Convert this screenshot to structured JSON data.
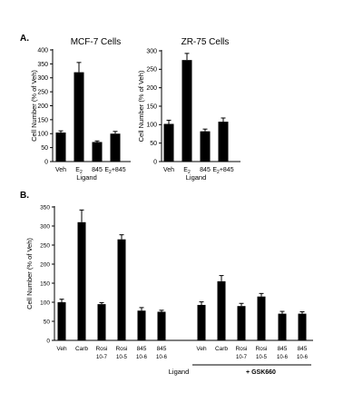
{
  "panel_labels": {
    "a": "A.",
    "b": "B."
  },
  "chart_data": [
    {
      "type": "bar",
      "panel": "A.",
      "title": "MCF-7 Cells",
      "xlabel": "Ligand",
      "ylabel": "Cell Number (% of Veh)",
      "ylim": [
        0,
        400
      ],
      "yticks": [
        0,
        50,
        100,
        150,
        200,
        250,
        300,
        350,
        400
      ],
      "categories": [
        {
          "main": "Veh",
          "sub": ""
        },
        {
          "main": "E",
          "sub": "2"
        },
        {
          "main": "845",
          "sub": ""
        },
        {
          "main": "E",
          "sub": "2",
          "rest": "+845"
        }
      ],
      "values": [
        104,
        320,
        70,
        100
      ],
      "errors": [
        6,
        35,
        4,
        8
      ]
    },
    {
      "type": "bar",
      "panel": "",
      "title": "ZR-75 Cells",
      "xlabel": "Ligand",
      "ylabel": "Cell Number (% of Veh)",
      "ylim": [
        0,
        300
      ],
      "yticks": [
        0,
        50,
        100,
        150,
        200,
        250,
        300
      ],
      "categories": [
        {
          "main": "Veh",
          "sub": ""
        },
        {
          "main": "E",
          "sub": "2"
        },
        {
          "main": "845",
          "sub": ""
        },
        {
          "main": "E",
          "sub": "2",
          "rest": "+845"
        }
      ],
      "values": [
        102,
        275,
        82,
        108
      ],
      "errors": [
        10,
        18,
        6,
        10
      ]
    },
    {
      "type": "bar",
      "panel": "B.",
      "title": "",
      "xlabel": "Ligand",
      "ylabel": "Cell Number (% of Veh)",
      "ylim": [
        0,
        350
      ],
      "yticks": [
        0,
        50,
        100,
        150,
        200,
        250,
        300,
        350
      ],
      "group_label": "+ GSK660",
      "categories": [
        {
          "line1": "Veh",
          "line2": ""
        },
        {
          "line1": "Carb",
          "line2": ""
        },
        {
          "line1": "Rosi",
          "line2": "10-7"
        },
        {
          "line1": "Rosi",
          "line2": "10-5"
        },
        {
          "line1": "845",
          "line2": "10-6"
        },
        {
          "line1": "845",
          "line2": "10-6"
        },
        {
          "line1": "Veh",
          "line2": ""
        },
        {
          "line1": "Carb",
          "line2": ""
        },
        {
          "line1": "Rosi",
          "line2": "10-7"
        },
        {
          "line1": "Rosi",
          "line2": "10-5"
        },
        {
          "line1": "845",
          "line2": "10-6"
        },
        {
          "line1": "845",
          "line2": "10-6"
        }
      ],
      "values": [
        100,
        310,
        95,
        265,
        78,
        75,
        93,
        155,
        90,
        115,
        70,
        70
      ],
      "errors": [
        8,
        32,
        4,
        12,
        8,
        4,
        8,
        15,
        7,
        8,
        6,
        5
      ]
    }
  ]
}
